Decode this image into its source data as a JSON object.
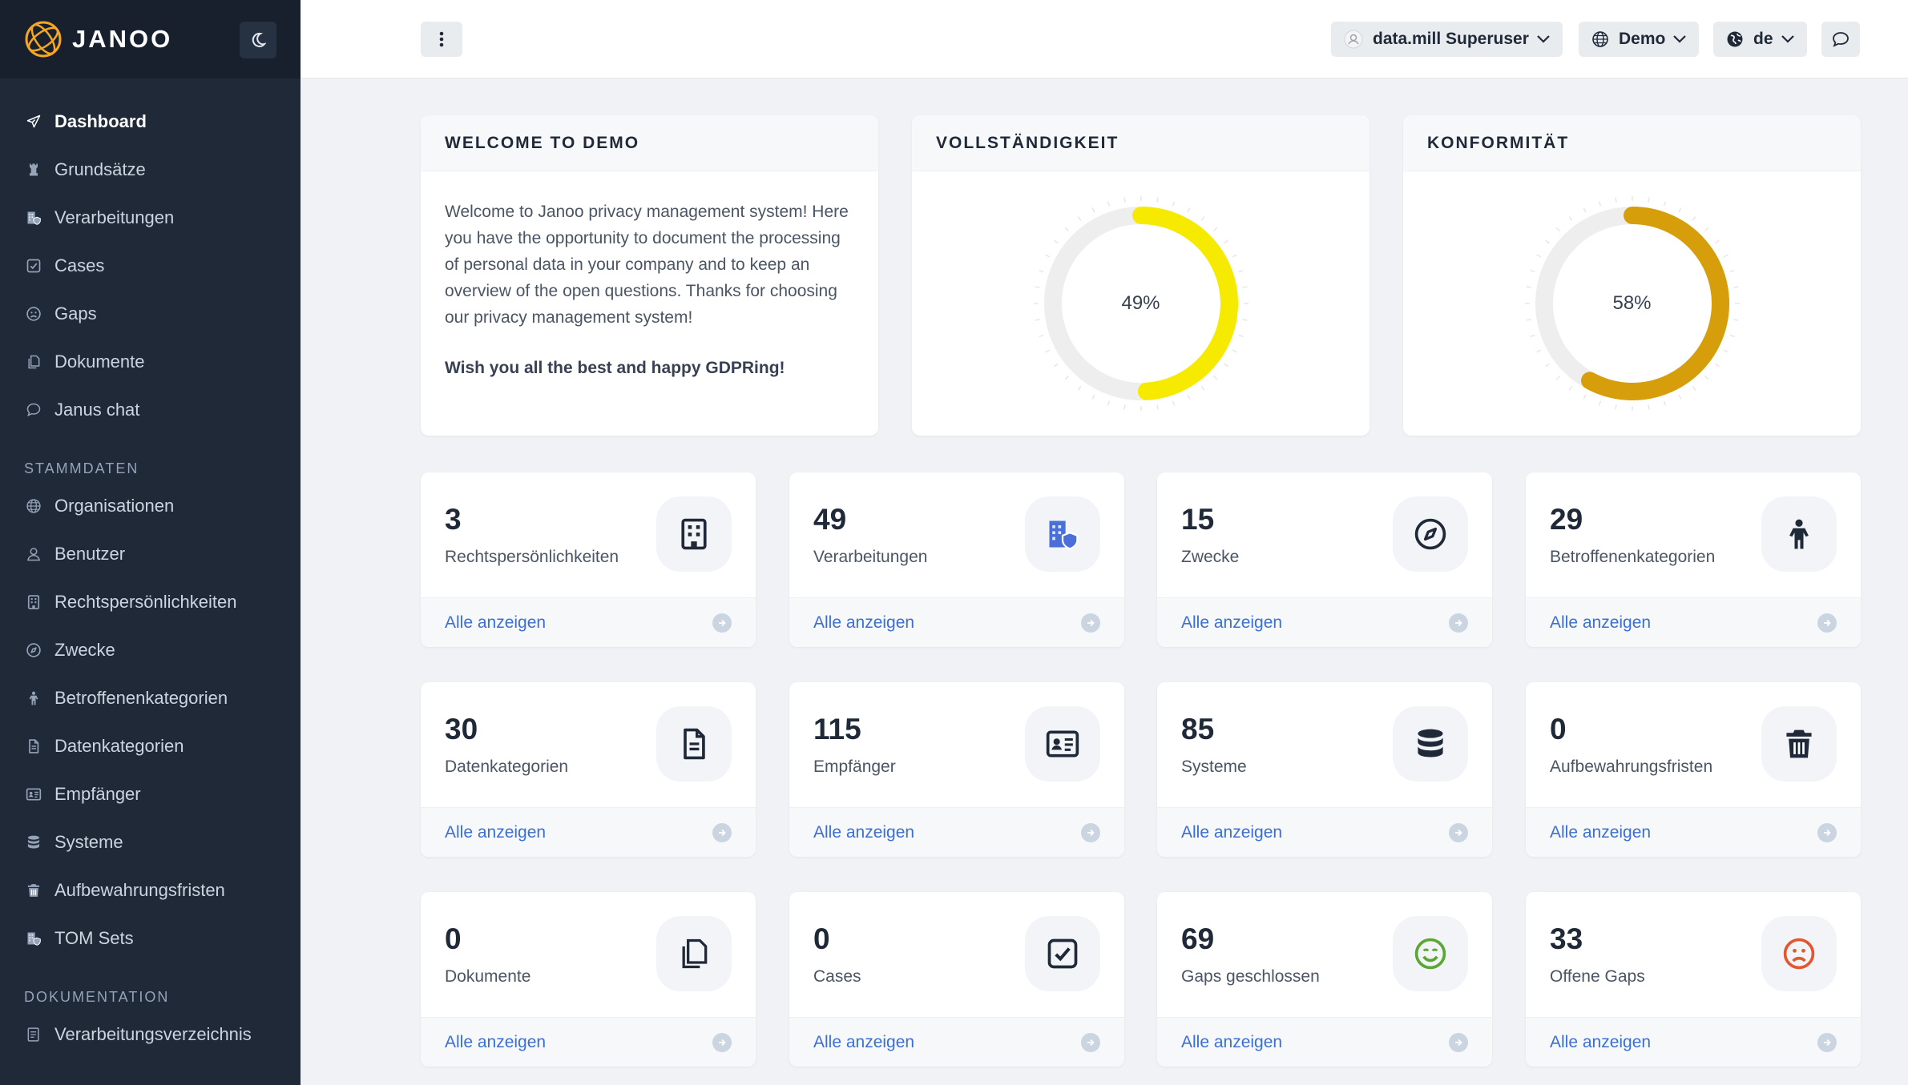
{
  "brand": {
    "name": "JANOO"
  },
  "sidebar": {
    "main_items": [
      {
        "label": "Dashboard",
        "icon": "send-icon",
        "active": true
      },
      {
        "label": "Grundsätze",
        "icon": "chess-rook-icon"
      },
      {
        "label": "Verarbeitungen",
        "icon": "building-shield-icon"
      },
      {
        "label": "Cases",
        "icon": "checkbox-icon"
      },
      {
        "label": "Gaps",
        "icon": "frown-icon"
      },
      {
        "label": "Dokumente",
        "icon": "copy-icon"
      },
      {
        "label": "Janus chat",
        "icon": "chat-bubble-icon"
      }
    ],
    "section_stammdaten": "STAMMDATEN",
    "stammdaten_items": [
      {
        "label": "Organisationen",
        "icon": "globe-icon"
      },
      {
        "label": "Benutzer",
        "icon": "user-icon"
      },
      {
        "label": "Rechtspersönlichkeiten",
        "icon": "building-icon"
      },
      {
        "label": "Zwecke",
        "icon": "compass-icon"
      },
      {
        "label": "Betroffenenkategorien",
        "icon": "child-icon"
      },
      {
        "label": "Datenkategorien",
        "icon": "file-icon"
      },
      {
        "label": "Empfänger",
        "icon": "id-card-icon"
      },
      {
        "label": "Systeme",
        "icon": "database-icon"
      },
      {
        "label": "Aufbewahrungsfristen",
        "icon": "trash-icon"
      },
      {
        "label": "TOM Sets",
        "icon": "building-shield-icon"
      }
    ],
    "section_dokumentation": "DOKUMENTATION",
    "dokumentation_items": [
      {
        "label": "Verarbeitungsverzeichnis",
        "icon": "file-list-icon"
      }
    ]
  },
  "topbar": {
    "user": "data.mill Superuser",
    "tenant": "Demo",
    "language": "de"
  },
  "welcome": {
    "title": "WELCOME TO DEMO",
    "text": "Welcome to Janoo privacy management system! Here you have the opportunity to document the processing of personal data in your company and to keep an overview of the open questions. Thanks for choosing our privacy management system!",
    "closing": "Wish you all the best and happy GDPRing!"
  },
  "completeness": {
    "title": "VOLLSTÄNDIGKEIT",
    "value": 49,
    "label": "49%",
    "color": "#f5ea00"
  },
  "conformity": {
    "title": "KONFORMITÄT",
    "value": 58,
    "label": "58%",
    "color": "#d69e0b"
  },
  "stats_link": "Alle anzeigen",
  "stats": [
    {
      "value": "3",
      "label": "Rechtspersönlichkeiten",
      "icon": "building-icon"
    },
    {
      "value": "49",
      "label": "Verarbeitungen",
      "icon": "building-shield-icon"
    },
    {
      "value": "15",
      "label": "Zwecke",
      "icon": "compass-icon"
    },
    {
      "value": "29",
      "label": "Betroffenenkategorien",
      "icon": "child-icon"
    },
    {
      "value": "30",
      "label": "Datenkategorien",
      "icon": "file-icon"
    },
    {
      "value": "115",
      "label": "Empfänger",
      "icon": "id-card-icon"
    },
    {
      "value": "85",
      "label": "Systeme",
      "icon": "database-icon"
    },
    {
      "value": "0",
      "label": "Aufbewahrungsfristen",
      "icon": "trash-icon"
    },
    {
      "value": "0",
      "label": "Dokumente",
      "icon": "copy-icon"
    },
    {
      "value": "0",
      "label": "Cases",
      "icon": "checkbox-icon"
    },
    {
      "value": "69",
      "label": "Gaps geschlossen",
      "icon": "smile-icon"
    },
    {
      "value": "33",
      "label": "Offene Gaps",
      "icon": "frown-icon"
    }
  ]
}
